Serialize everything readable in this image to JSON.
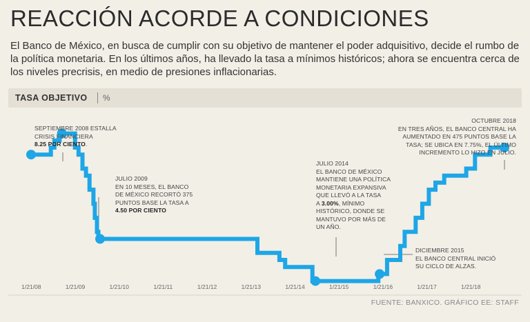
{
  "header": {
    "title": "REACCIÓN ACORDE A CONDICIONES",
    "intro": "El Banco de México, en busca de cumplir con su objetivo de mantener el poder adquisitivo, decide el rumbo de la política monetaria. En los últimos años, ha llevado la tasa a mínimos históricos; ahora se encuentra cerca de los niveles precrisis, en medio de presiones inflacionarias."
  },
  "label_bar": {
    "title": "TASA OBJETIVO",
    "unit": "%"
  },
  "annotations": {
    "sep2008": {
      "line1": "SEPTIEMBRE 2008 ESTALLA",
      "line2": "CRISIS FINANCIERA",
      "bold": "8.25 POR CIENTO",
      "tail": "."
    },
    "jul2009": {
      "line1": "JULIO 2009",
      "line2": "EN 10 MESES, EL BANCO",
      "line3": "DE MÉXICO RECORTÓ 375",
      "line4": "PUNTOS BASE LA TASA A",
      "bold": "4.50 POR CIENTO"
    },
    "jul2014": {
      "line1": "JULIO 2014",
      "line2": "EL BANCO DE MÉXICO",
      "line3": "MANTIENE UNA POLÍTICA",
      "line4": "MONETARIA EXPANSIVA",
      "line5": "QUE LLEVÓ A LA TASA",
      "pre": "A ",
      "bold": "3.00%",
      "post": ", MÍNIMO",
      "line7": "HISTÓRICO, DONDE SE",
      "line8": "MANTUVO POR MÁS DE",
      "line9": "UN AÑO."
    },
    "dic2015": {
      "line1": "DICIEMBRE 2015",
      "line2": "EL BANCO CENTRAL INICIÓ",
      "line3": "SU CICLO DE ALZAS."
    },
    "oct2018": {
      "line1": "OCTUBRE 2018",
      "line2": "EN TRES AÑOS, EL BANCO CENTRAL HA",
      "line3": "AUMENTADO EN 475 PUNTOS BASE LA",
      "line4": "TASA; SE UBICA EN 7.75%, EL ÚLTIMO",
      "line5": "INCREMENTO LO HIZO EN JULIO."
    }
  },
  "source": "FUENTE: BANXICO.  GRÁFICO EE: STAFF",
  "colors": {
    "line": "#1ea6e6",
    "background": "#f2efe7"
  },
  "chart_data": {
    "type": "line",
    "title": "TASA OBJETIVO",
    "ylabel": "%",
    "xlabel": "",
    "ylim": [
      2.5,
      9.0
    ],
    "x_ticks": [
      "1/21/08",
      "1/21/09",
      "1/21/10",
      "1/21/11",
      "1/21/12",
      "1/21/13",
      "1/21/14",
      "1/21/15",
      "1/21/16",
      "1/21/17",
      "1/21/18"
    ],
    "series": [
      {
        "name": "Tasa objetivo",
        "step": true,
        "points": [
          [
            2008.05,
            7.5
          ],
          [
            2008.5,
            7.75
          ],
          [
            2008.58,
            8.0
          ],
          [
            2008.7,
            8.25
          ],
          [
            2009.05,
            7.75
          ],
          [
            2009.13,
            7.5
          ],
          [
            2009.22,
            7.0
          ],
          [
            2009.3,
            6.75
          ],
          [
            2009.38,
            6.25
          ],
          [
            2009.47,
            5.75
          ],
          [
            2009.5,
            5.25
          ],
          [
            2009.55,
            4.75
          ],
          [
            2009.58,
            4.5
          ],
          [
            2013.2,
            4.0
          ],
          [
            2013.7,
            3.75
          ],
          [
            2013.83,
            3.5
          ],
          [
            2014.45,
            3.0
          ],
          [
            2015.95,
            3.25
          ],
          [
            2016.15,
            3.75
          ],
          [
            2016.45,
            4.25
          ],
          [
            2016.55,
            4.75
          ],
          [
            2016.8,
            5.25
          ],
          [
            2016.95,
            5.75
          ],
          [
            2017.1,
            6.25
          ],
          [
            2017.25,
            6.5
          ],
          [
            2017.45,
            6.75
          ],
          [
            2017.95,
            7.0
          ],
          [
            2018.15,
            7.5
          ],
          [
            2018.5,
            7.75
          ],
          [
            2018.82,
            7.75
          ]
        ]
      }
    ],
    "markers": [
      {
        "x": 2008.05,
        "y": 7.5
      },
      {
        "x": 2008.75,
        "y": 8.25
      },
      {
        "x": 2009.62,
        "y": 4.5
      },
      {
        "x": 2014.52,
        "y": 3.0
      },
      {
        "x": 2015.98,
        "y": 3.25
      },
      {
        "x": 2018.82,
        "y": 7.75
      }
    ]
  }
}
